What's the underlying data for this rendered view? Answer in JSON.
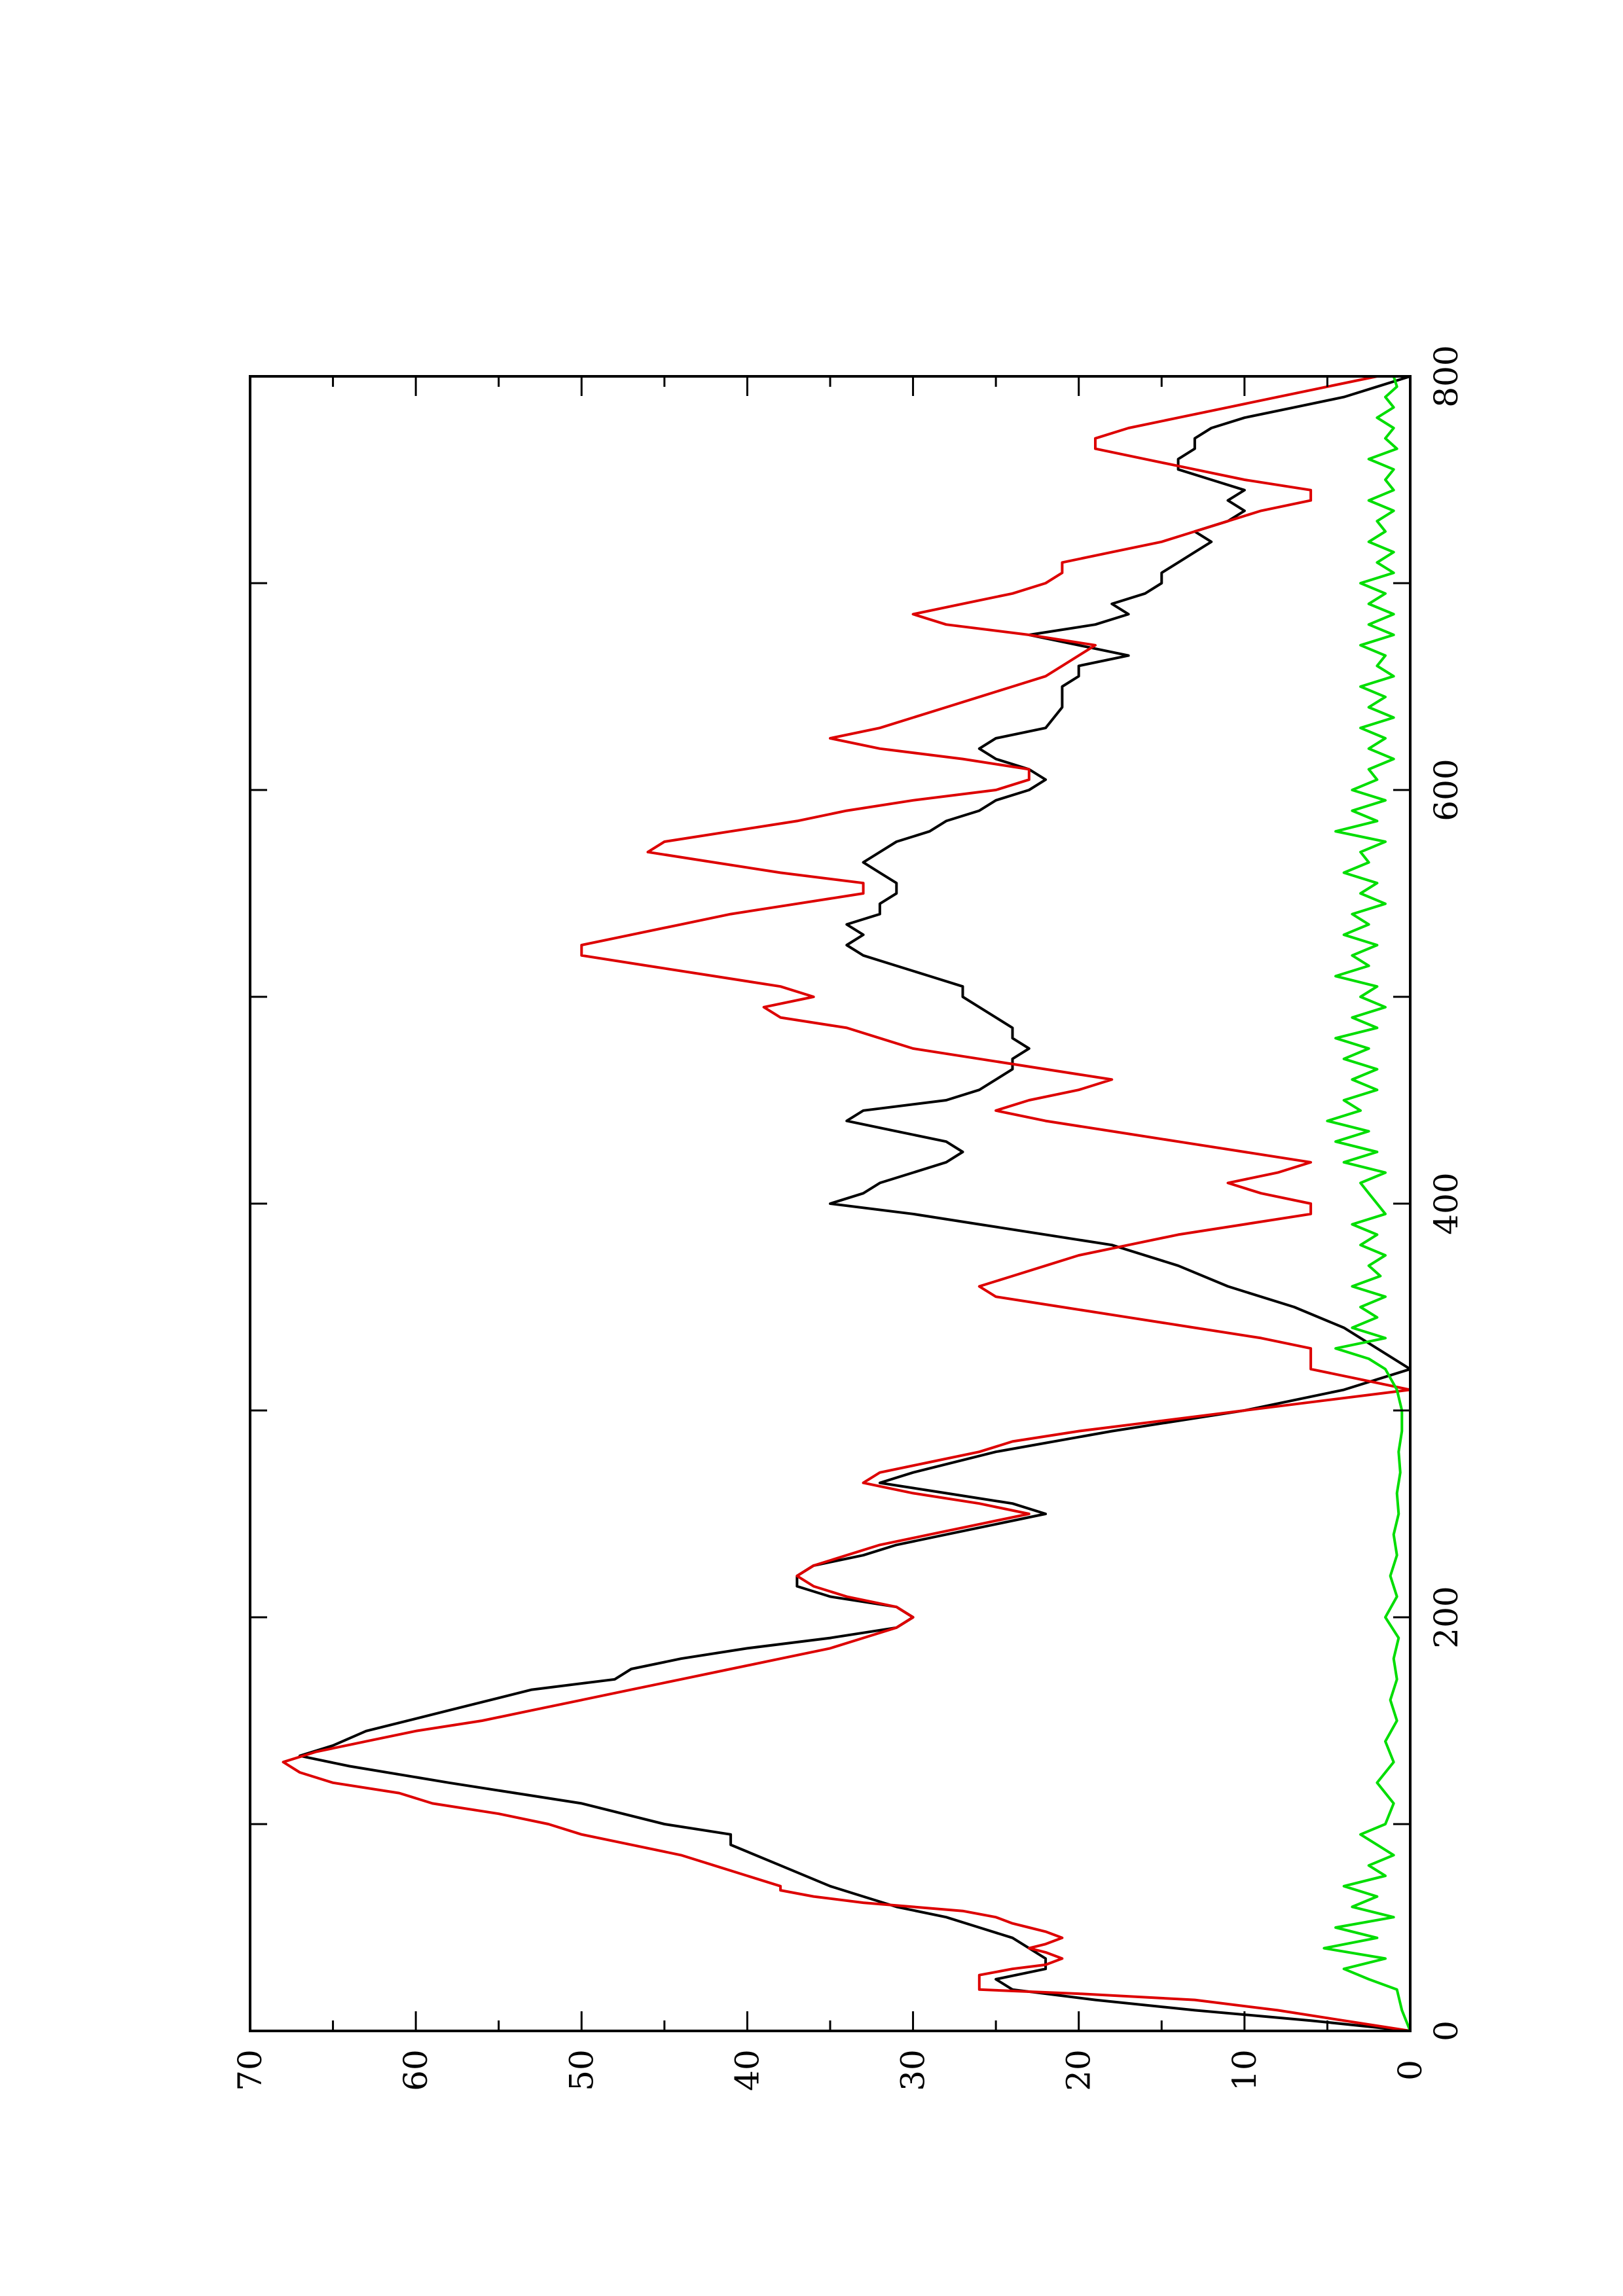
{
  "chart_data": {
    "type": "line",
    "title": "",
    "xlabel": "",
    "ylabel": "",
    "xlim": [
      0,
      800
    ],
    "ylim": [
      0,
      70
    ],
    "orientation": "rotated-90-ccw",
    "grid": false,
    "legend": "none",
    "x_ticks": [
      0,
      100,
      200,
      300,
      400,
      500,
      600,
      700,
      800
    ],
    "x_tick_labels": [
      "0",
      "",
      "200",
      "",
      "400",
      "",
      "600",
      "",
      "800"
    ],
    "y_ticks": [
      0,
      5,
      10,
      15,
      20,
      25,
      30,
      35,
      40,
      45,
      50,
      55,
      60,
      65,
      70
    ],
    "y_tick_labels": [
      "0",
      "",
      "10",
      "",
      "20",
      "",
      "30",
      "",
      "40",
      "",
      "50",
      "",
      "60",
      "",
      "70"
    ],
    "series": [
      {
        "color": "#000000",
        "x": [
          0,
          5,
          10,
          15,
          20,
          25,
          30,
          35,
          40,
          45,
          50,
          55,
          60,
          65,
          70,
          80,
          90,
          95,
          100,
          110,
          120,
          128,
          133,
          138,
          145,
          155,
          165,
          170,
          175,
          180,
          185,
          190,
          195,
          200,
          205,
          210,
          215,
          220,
          225,
          230,
          235,
          240,
          245,
          250,
          255,
          260,
          265,
          270,
          280,
          290,
          300,
          310,
          320,
          330,
          340,
          350,
          360,
          370,
          380,
          390,
          395,
          400,
          405,
          410,
          415,
          420,
          425,
          430,
          435,
          440,
          445,
          450,
          455,
          460,
          465,
          470,
          475,
          480,
          485,
          490,
          495,
          500,
          505,
          510,
          515,
          520,
          525,
          530,
          535,
          540,
          545,
          550,
          555,
          560,
          565,
          570,
          575,
          580,
          585,
          590,
          595,
          600,
          605,
          610,
          615,
          620,
          625,
          630,
          640,
          650,
          655,
          660,
          665,
          670,
          675,
          680,
          685,
          690,
          695,
          700,
          705,
          710,
          715,
          720,
          725,
          730,
          735,
          740,
          745,
          750,
          755,
          760,
          765,
          770,
          775,
          780,
          785,
          790,
          795,
          800
        ],
        "y": [
          0,
          6,
          13,
          19,
          24,
          25,
          22,
          22,
          23,
          24,
          26,
          28,
          31,
          33,
          35,
          38,
          41,
          41,
          45,
          50,
          58,
          64,
          67,
          65,
          63,
          58,
          53,
          48,
          47,
          44,
          40,
          35,
          31,
          30,
          31,
          35,
          37,
          37,
          36,
          33,
          31,
          28,
          25,
          22,
          24,
          28,
          32,
          30,
          25,
          18,
          10,
          4,
          0,
          2,
          4,
          7,
          11,
          14,
          18,
          26,
          30,
          35,
          33,
          32,
          30,
          28,
          27,
          28,
          31,
          34,
          33,
          28,
          26,
          25,
          24,
          24,
          23,
          24,
          24,
          25,
          26,
          27,
          27,
          29,
          31,
          33,
          34,
          33,
          34,
          32,
          32,
          31,
          31,
          32,
          33,
          32,
          31,
          29,
          28,
          26,
          25,
          23,
          22,
          23,
          25,
          26,
          25,
          22,
          21,
          21,
          20,
          20,
          17,
          20,
          23,
          19,
          17,
          18,
          16,
          15,
          15,
          14,
          13,
          12,
          13,
          11,
          10,
          11,
          10,
          12,
          14,
          14,
          13,
          13,
          12,
          10,
          7,
          4,
          2,
          0
        ]
      },
      {
        "color": "#dd0000",
        "x": [
          0,
          10,
          15,
          18,
          20,
          27,
          30,
          32,
          35,
          38,
          40,
          42,
          45,
          48,
          50,
          52,
          55,
          58,
          60,
          62,
          65,
          68,
          70,
          75,
          80,
          85,
          90,
          95,
          100,
          105,
          110,
          115,
          120,
          125,
          130,
          135,
          140,
          145,
          150,
          155,
          160,
          165,
          170,
          175,
          180,
          185,
          190,
          195,
          200,
          205,
          210,
          215,
          220,
          225,
          230,
          235,
          240,
          245,
          250,
          255,
          260,
          265,
          270,
          275,
          280,
          285,
          290,
          295,
          300,
          305,
          310,
          315,
          320,
          325,
          330,
          335,
          340,
          345,
          350,
          355,
          360,
          365,
          370,
          375,
          380,
          385,
          390,
          395,
          400,
          405,
          410,
          415,
          420,
          425,
          430,
          435,
          440,
          445,
          450,
          455,
          460,
          465,
          470,
          475,
          480,
          485,
          490,
          495,
          500,
          505,
          510,
          515,
          520,
          525,
          530,
          535,
          540,
          545,
          550,
          555,
          560,
          565,
          570,
          575,
          580,
          585,
          590,
          595,
          600,
          605,
          610,
          615,
          620,
          625,
          630,
          635,
          640,
          645,
          650,
          655,
          660,
          665,
          670,
          675,
          680,
          685,
          690,
          695,
          700,
          705,
          710,
          715,
          720,
          725,
          730,
          735,
          740,
          745,
          750,
          755,
          760,
          765,
          770,
          775,
          780,
          785,
          790,
          795,
          800
        ],
        "y": [
          0,
          8,
          13,
          20,
          26,
          26,
          24,
          22,
          21,
          22,
          23,
          22,
          21,
          22,
          23,
          24,
          25,
          27,
          30,
          33,
          36,
          38,
          38,
          40,
          42,
          44,
          47,
          50,
          52,
          55,
          59,
          61,
          65,
          67,
          68,
          66,
          63,
          60,
          56,
          53,
          50,
          47,
          44,
          41,
          38,
          35,
          33,
          31,
          30,
          31,
          34,
          36,
          37,
          36,
          34,
          32,
          29,
          26,
          23,
          26,
          30,
          33,
          32,
          29,
          26,
          24,
          20,
          15,
          10,
          5,
          0,
          3,
          6,
          6,
          6,
          9,
          13,
          17,
          21,
          25,
          26,
          24,
          22,
          20,
          17,
          14,
          10,
          6,
          6,
          9,
          11,
          8,
          6,
          10,
          14,
          18,
          22,
          25,
          23,
          20,
          18,
          22,
          26,
          30,
          32,
          34,
          38,
          39,
          36,
          38,
          42,
          46,
          50,
          50,
          47,
          44,
          41,
          37,
          33,
          33,
          38,
          42,
          46,
          45,
          41,
          37,
          34,
          30,
          25,
          23,
          23,
          27,
          32,
          35,
          32,
          30,
          28,
          26,
          24,
          22,
          21,
          20,
          19,
          23,
          28,
          30,
          27,
          24,
          22,
          21,
          21,
          18,
          15,
          13,
          11,
          9,
          6,
          6,
          10,
          13,
          16,
          19,
          19,
          17,
          14,
          11,
          8,
          5,
          2
        ]
      },
      {
        "color": "#00dd00",
        "x": [
          0,
          10,
          20,
          25,
          30,
          35,
          40,
          45,
          50,
          55,
          60,
          65,
          70,
          75,
          80,
          85,
          90,
          95,
          100,
          110,
          120,
          130,
          140,
          150,
          160,
          170,
          180,
          190,
          200,
          210,
          220,
          230,
          240,
          250,
          260,
          270,
          280,
          290,
          300,
          310,
          320,
          325,
          330,
          335,
          340,
          345,
          350,
          355,
          360,
          365,
          370,
          375,
          380,
          385,
          390,
          395,
          400,
          405,
          410,
          415,
          420,
          425,
          430,
          435,
          440,
          445,
          450,
          455,
          460,
          465,
          470,
          475,
          480,
          485,
          490,
          495,
          500,
          505,
          510,
          515,
          520,
          525,
          530,
          535,
          540,
          545,
          550,
          555,
          560,
          565,
          570,
          575,
          580,
          585,
          590,
          595,
          600,
          605,
          610,
          615,
          620,
          625,
          630,
          635,
          640,
          645,
          650,
          655,
          660,
          665,
          670,
          675,
          680,
          685,
          690,
          695,
          700,
          705,
          710,
          715,
          720,
          725,
          730,
          735,
          740,
          745,
          750,
          755,
          760,
          765,
          770,
          775,
          780,
          785,
          790,
          795,
          800
        ],
        "y": [
          0,
          0.5,
          0.8,
          2.5,
          4.0,
          1.5,
          5.2,
          2.0,
          4.5,
          1.0,
          3.5,
          2.0,
          4.0,
          1.5,
          2.5,
          1.0,
          2.0,
          3.0,
          1.5,
          1.0,
          2.0,
          1.0,
          1.5,
          0.8,
          1.2,
          0.8,
          1.0,
          0.7,
          1.5,
          0.8,
          1.2,
          0.8,
          1.0,
          0.7,
          0.8,
          0.6,
          0.7,
          0.5,
          0.5,
          0.8,
          1.5,
          2.5,
          4.5,
          1.5,
          3.5,
          2.0,
          3.0,
          1.5,
          3.5,
          1.8,
          2.5,
          1.5,
          3.0,
          2.0,
          3.5,
          1.5,
          2.0,
          2.5,
          3.0,
          1.5,
          4.0,
          2.0,
          4.5,
          2.5,
          5.0,
          3.0,
          4.0,
          2.0,
          3.5,
          2.0,
          4.0,
          2.5,
          4.5,
          2.0,
          3.5,
          1.5,
          3.0,
          2.0,
          4.5,
          2.5,
          3.5,
          2.0,
          4.0,
          2.5,
          3.5,
          1.5,
          3.0,
          2.0,
          4.0,
          2.5,
          3.0,
          1.5,
          4.5,
          2.0,
          3.5,
          1.5,
          3.5,
          2.0,
          2.5,
          1.0,
          2.5,
          1.5,
          3.0,
          1.0,
          2.5,
          1.5,
          3.0,
          1.0,
          2.0,
          1.5,
          3.0,
          1.0,
          2.5,
          1.0,
          2.5,
          1.5,
          3.0,
          1.0,
          2.0,
          1.0,
          2.5,
          1.5,
          2.0,
          1.0,
          2.5,
          1.0,
          1.5,
          1.0,
          2.5,
          0.8,
          1.5,
          1.0,
          2.0,
          1.0,
          1.5,
          0.8,
          1.0
        ]
      }
    ]
  }
}
